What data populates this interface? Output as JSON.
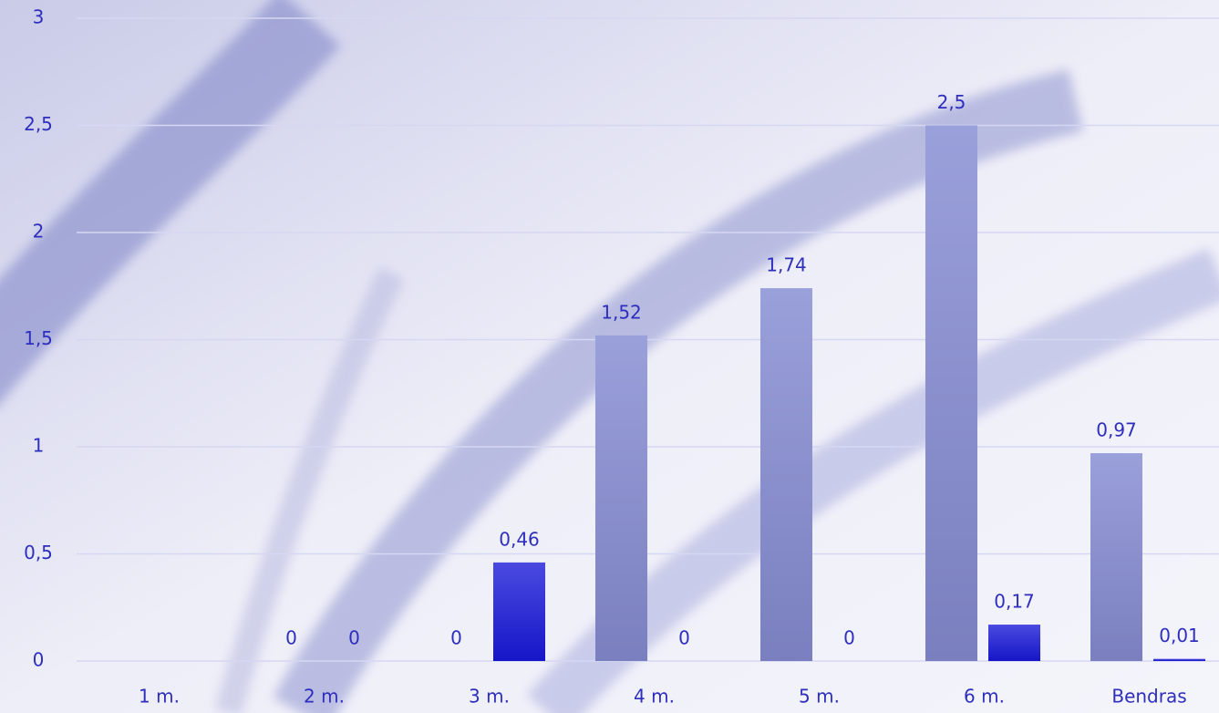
{
  "chart_data": {
    "type": "bar",
    "categories": [
      "1 m.",
      "2 m.",
      "3 m.",
      "4 m.",
      "5 m.",
      "6 m.",
      "Bendras"
    ],
    "series": [
      {
        "color": "#8c92cc",
        "values": [
          null,
          0,
          0,
          1.52,
          1.74,
          2.5,
          0.97
        ],
        "value_labels": [
          null,
          "0",
          "0",
          "1,52",
          "1,74",
          "2,5",
          "0,97"
        ]
      },
      {
        "color": "#2323d2",
        "values": [
          null,
          0,
          0.46,
          0,
          0,
          0.17,
          0.01
        ],
        "value_labels": [
          null,
          "0",
          "0,46",
          "0",
          "0",
          "0,17",
          "0,01"
        ]
      }
    ],
    "ylim": [
      0,
      3
    ],
    "yticks": [
      0,
      {
        "value": 0.5,
        "label": "0,5"
      },
      1,
      {
        "value": 1.5,
        "label": "1,5"
      },
      2,
      {
        "value": 2.5,
        "label": "2,5"
      },
      3
    ],
    "grid": true
  }
}
